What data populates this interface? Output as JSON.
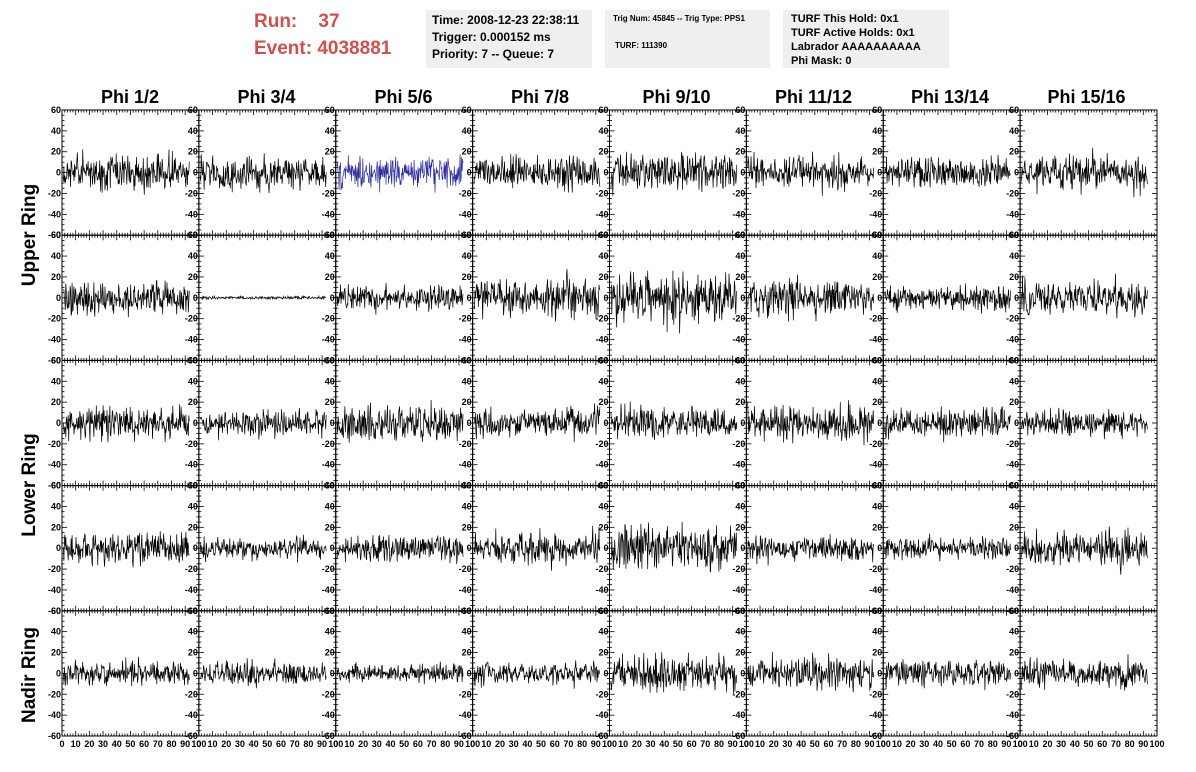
{
  "run": {
    "run_label": "Run:",
    "run_value": "37",
    "event_label": "Event:",
    "event_value": "4038881"
  },
  "time_box": {
    "time": "Time: 2008-12-23 22:38:11",
    "trigger": "Trigger: 0.000152 ms",
    "priority": "Priority: 7 -- Queue: 7"
  },
  "trig_box": {
    "trig": "Trig Num: 45845 -- Trig Type: PPS1",
    "turf": "TURF: 111390"
  },
  "turf_box": {
    "this_hold": "TURF This Hold: 0x1",
    "active_holds": "TURF Active Holds: 0x1",
    "labrador": "Labrador AAAAAAAAAA",
    "phi_mask": "Phi Mask: 0"
  },
  "columns": [
    "Phi 1/2",
    "Phi 3/4",
    "Phi 5/6",
    "Phi 7/8",
    "Phi 9/10",
    "Phi 11/12",
    "Phi 13/14",
    "Phi 15/16"
  ],
  "ring_labels": [
    "Upper Ring",
    "Lower Ring",
    "Nadir Ring"
  ],
  "y_ticks": [
    "60",
    "40",
    "20",
    "0",
    "-20",
    "-40",
    "-60"
  ],
  "x_ticks": [
    "0",
    "10",
    "20",
    "30",
    "40",
    "50",
    "60",
    "70",
    "80",
    "90",
    "100"
  ],
  "chart_data": {
    "type": "line",
    "ylim": [
      -60,
      60
    ],
    "xlim": [
      0,
      100
    ],
    "rows": 5,
    "cols": 8,
    "highlight": {
      "row": 0,
      "col": 2,
      "color": "#2c2c9e"
    },
    "trace_color": "#000000",
    "amplitude": [
      [
        22,
        20,
        20,
        20,
        26,
        20,
        18,
        22
      ],
      [
        22,
        2,
        16,
        24,
        30,
        22,
        16,
        22
      ],
      [
        20,
        16,
        22,
        18,
        20,
        22,
        18,
        16
      ],
      [
        20,
        14,
        16,
        20,
        30,
        16,
        14,
        22
      ],
      [
        14,
        14,
        12,
        14,
        22,
        20,
        16,
        18
      ]
    ]
  }
}
